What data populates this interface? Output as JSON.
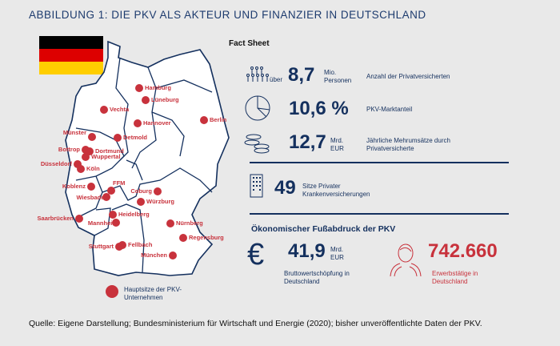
{
  "title": "ABBILDUNG 1: DIE PKV ALS AKTEUR UND FINANZIER IN DEUTSCHLAND",
  "colors": {
    "navy": "#14305e",
    "red": "#c8323c",
    "background": "#e9e9e9"
  },
  "map": {
    "flag": "germany-flag",
    "cities": [
      "Hamburg",
      "Lüneburg",
      "Vechta",
      "Hannover",
      "Berlin",
      "Münster",
      "Detmold",
      "Bottrop",
      "Dortmund",
      "Wuppertal",
      "Düsseldorf",
      "Köln",
      "Koblenz",
      "FFM",
      "Coburg",
      "Wiesbaden",
      "Würzburg",
      "Saarbrücken",
      "Heidelberg",
      "Mannheim",
      "Nürnberg",
      "Regensburg",
      "Stuttgart",
      "Fellbach",
      "München"
    ],
    "legend": "Hauptsitze der PKV-Unternehmen"
  },
  "factsheet": {
    "heading": "Fact Sheet",
    "items": [
      {
        "icon": "people-icon",
        "prefix": "über",
        "value": "8,7",
        "unit": "Mio. Personen",
        "label": "Anzahl der Privatversicherten"
      },
      {
        "icon": "pie-chart-icon",
        "prefix": "",
        "value": "10,6 %",
        "unit": "",
        "label": "PKV-Marktanteil"
      },
      {
        "icon": "coins-icon",
        "prefix": "",
        "value": "12,7",
        "unit": "Mrd. EUR",
        "label": "Jährliche Mehrumsätze durch Privatversicherte"
      },
      {
        "icon": "building-icon",
        "prefix": "",
        "value": "49",
        "unit": "",
        "label": "Sitze Privater Krankenversicherungen"
      }
    ]
  },
  "footprint": {
    "heading": "Ökonomischer Fußabdruck der PKV",
    "gva": {
      "icon": "euro-icon",
      "value": "41,9",
      "unit": "Mrd. EUR",
      "label": "Bruttowertschöpfung in Deutschland"
    },
    "jobs": {
      "icon": "person-icon",
      "value": "742.660",
      "label": "Erwerbstätige in Deutschland"
    }
  },
  "source": "Quelle: Eigene Darstellung; Bundesministerium für Wirtschaft und Energie (2020); bisher unveröffentlichte Daten der PKV."
}
